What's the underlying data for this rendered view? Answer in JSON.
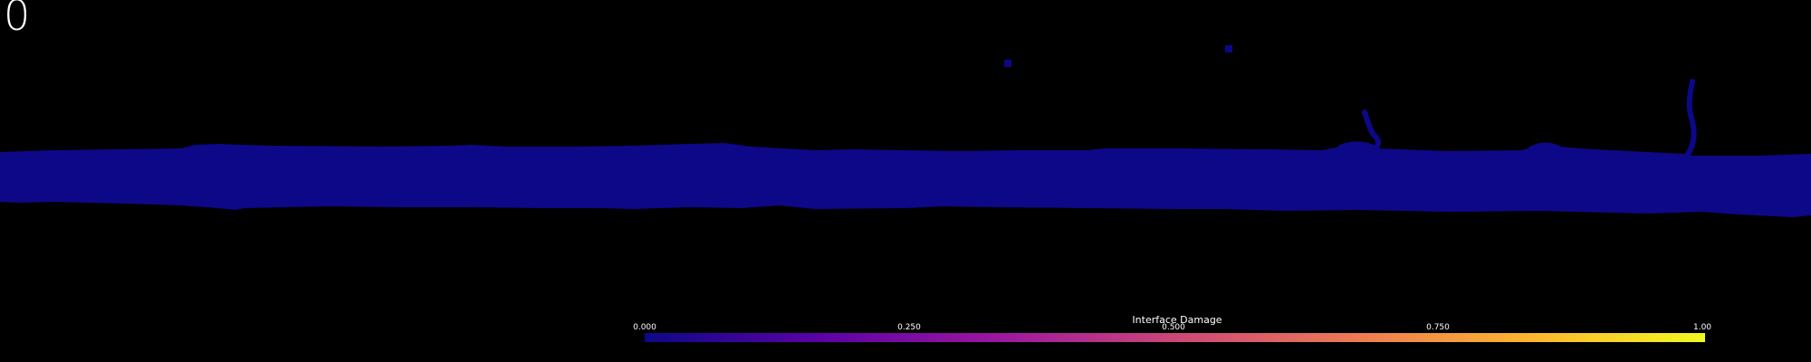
{
  "frame_counter": "0",
  "colorbar": {
    "title": "Interface Damage",
    "ticks": [
      "0.000",
      "0.250",
      "0.500",
      "0.750",
      "1.00"
    ],
    "colormap": "plasma",
    "stops": [
      "#0d0887",
      "#5c01a6",
      "#9c179e",
      "#cc4778",
      "#ed7953",
      "#fdb42f",
      "#f0f921"
    ]
  },
  "field_color": "#0d0887"
}
